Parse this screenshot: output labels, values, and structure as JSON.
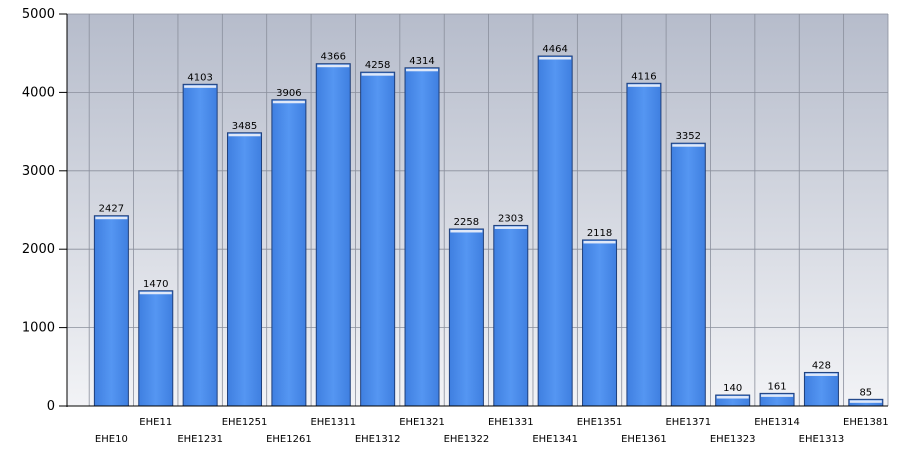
{
  "chart_data": {
    "type": "bar",
    "title": "",
    "xlabel": "",
    "ylabel": "",
    "ylim": [
      0,
      5000
    ],
    "yticks": [
      0,
      1000,
      2000,
      3000,
      4000,
      5000
    ],
    "grid": true,
    "legend": "none",
    "bar_color": "#4d8ff0",
    "plot_background_top": "#b6bccb",
    "plot_background_bottom": "#f2f3f6",
    "categories": [
      "EHE10",
      "EHE11",
      "EHE1231",
      "EHE1251",
      "EHE1261",
      "EHE1311",
      "EHE1312",
      "EHE1321",
      "EHE1322",
      "EHE1331",
      "EHE1341",
      "EHE1351",
      "EHE1361",
      "EHE1371",
      "EHE1323",
      "EHE1314",
      "EHE1313",
      "EHE1381"
    ],
    "values": [
      2427,
      1470,
      4103,
      3485,
      3906,
      4366,
      4258,
      4314,
      2258,
      2303,
      4464,
      2118,
      4116,
      3352,
      140,
      161,
      428,
      85
    ],
    "data_labels": [
      "2427",
      "1470",
      "4103",
      "3485",
      "3906",
      "4366",
      "4258",
      "4314",
      "2258",
      "2303",
      "4464",
      "2118",
      "4116",
      "3352",
      "140",
      "161",
      "428",
      "85"
    ]
  }
}
